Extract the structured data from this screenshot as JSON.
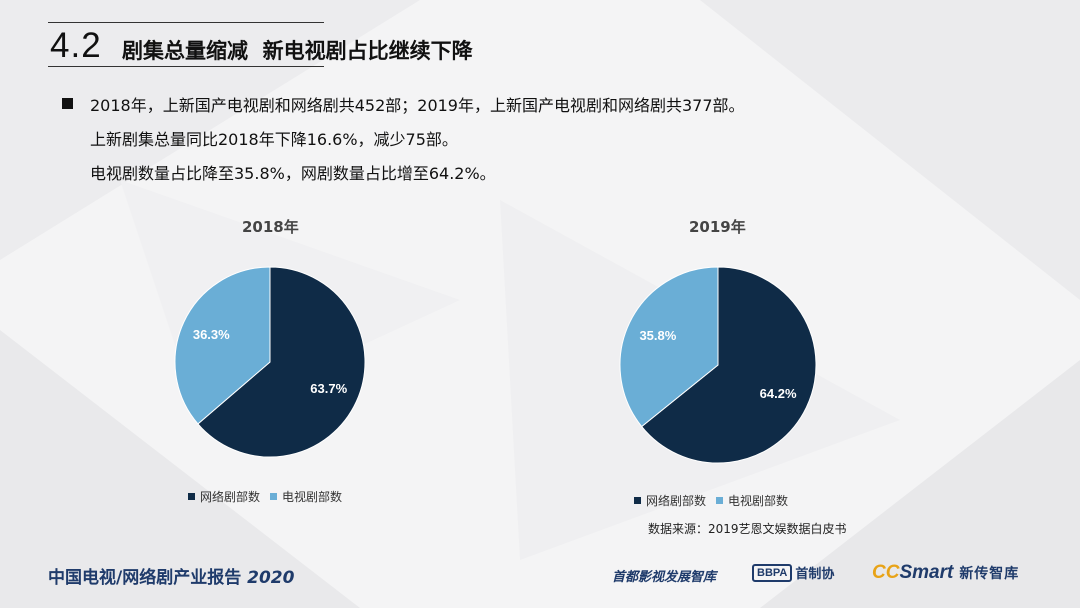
{
  "header": {
    "section_number": "4.2",
    "title": "剧集总量缩减  新电视剧占比继续下降"
  },
  "bullets": {
    "line1": "2018年，上新国产电视剧和网络剧共452部；2019年，上新国产电视剧和网络剧共377部。",
    "line2": "上新剧集总量同比2018年下降16.6%，减少75部。",
    "line3": "电视剧数量占比降至35.8%，网剧数量占比增至64.2%。"
  },
  "colors": {
    "web_series": "#0f2b47",
    "tv_series": "#6aaed6"
  },
  "chart_data": [
    {
      "type": "pie",
      "title": "2018年",
      "series": [
        {
          "name": "网络剧部数",
          "value": 63.7,
          "label": "63.7%"
        },
        {
          "name": "电视剧部数",
          "value": 36.3,
          "label": "36.3%"
        }
      ],
      "legend": [
        "网络剧部数",
        "电视剧部数"
      ],
      "legend_position": "bottom"
    },
    {
      "type": "pie",
      "title": "2019年",
      "series": [
        {
          "name": "网络剧部数",
          "value": 64.2,
          "label": "64.2%"
        },
        {
          "name": "电视剧部数",
          "value": 35.8,
          "label": "35.8%"
        }
      ],
      "legend": [
        "网络剧部数",
        "电视剧部数"
      ],
      "legend_position": "bottom"
    }
  ],
  "source": "数据来源：2019艺恩文娱数据白皮书",
  "footer": {
    "report_title": "中国电视/网络剧产业报告",
    "report_year": "2020",
    "logo1": "首都影视发展智库",
    "logo2_box": "BBPA",
    "logo2_text": "首制协",
    "logo3_cc": "CC",
    "logo3_smart": "Smart",
    "logo3_cn": "新传智库"
  }
}
